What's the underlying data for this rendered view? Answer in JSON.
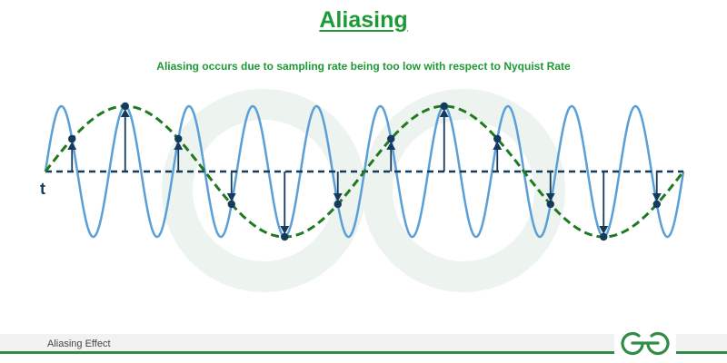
{
  "header": {
    "title": "Aliasing",
    "subtitle": "Aliasing occurs due to sampling rate being too low with respect to Nyquist Rate"
  },
  "diagram": {
    "axis_label": "t",
    "signal_cycles": 10,
    "alias_cycles": 2,
    "sample_count": 12,
    "colors": {
      "signal": "#5aa0d8",
      "alias": "#1e7a1e",
      "axis": "#163a5c",
      "sample": "#163a5c",
      "watermark": "#edf3ee"
    }
  },
  "footer": {
    "label": "Aliasing Effect",
    "logo_icon": "gfg-logo-icon",
    "accent": "#2f8d46"
  }
}
